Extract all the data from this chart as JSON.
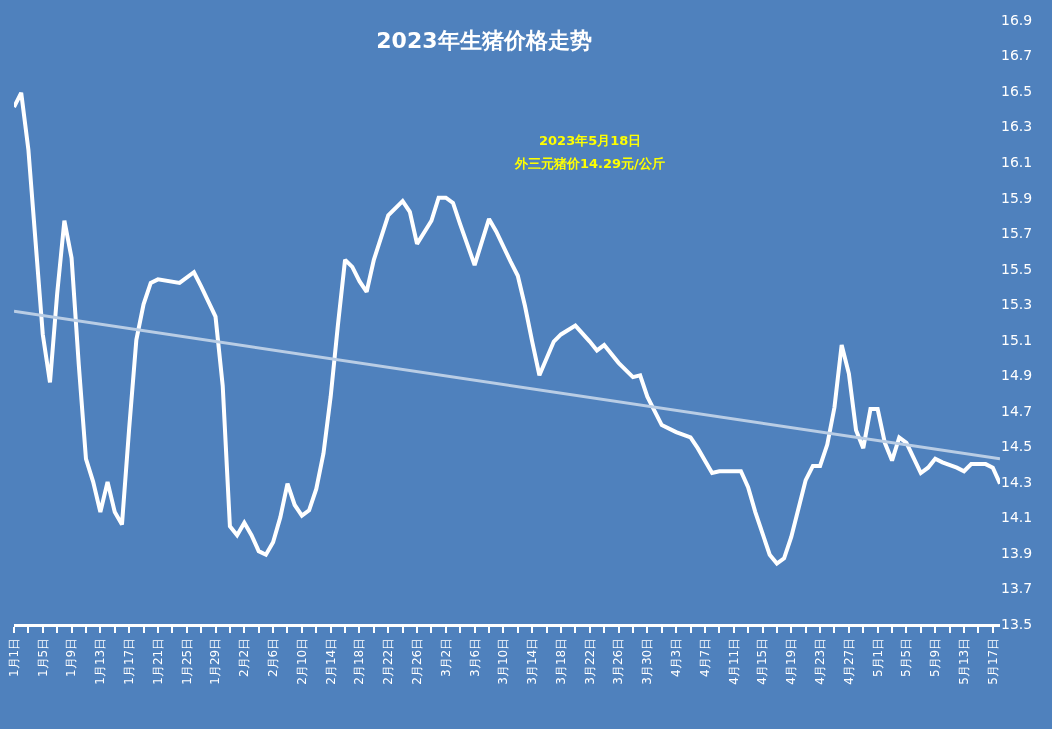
{
  "chart_data": {
    "type": "line",
    "title": "2023年生猪价格走势",
    "annotations": [
      "2023年5月18日",
      "外三元猪价14.29元/公斤"
    ],
    "series": [
      {
        "color": "#ffffff",
        "x": [
          "2023-01-01",
          "2023-01-02",
          "2023-01-03",
          "2023-01-04",
          "2023-01-05",
          "2023-01-06",
          "2023-01-07",
          "2023-01-08",
          "2023-01-09",
          "2023-01-10",
          "2023-01-11",
          "2023-01-12",
          "2023-01-13",
          "2023-01-14",
          "2023-01-15",
          "2023-01-16",
          "2023-01-17",
          "2023-01-18",
          "2023-01-19",
          "2023-01-20",
          "2023-01-21",
          "2023-01-24",
          "2023-01-26",
          "2023-01-27",
          "2023-01-29",
          "2023-01-30",
          "2023-01-31",
          "2023-02-01",
          "2023-02-02",
          "2023-02-03",
          "2023-02-04",
          "2023-02-05",
          "2023-02-06",
          "2023-02-07",
          "2023-02-08",
          "2023-02-09",
          "2023-02-10",
          "2023-02-11",
          "2023-02-12",
          "2023-02-13",
          "2023-02-14",
          "2023-02-15",
          "2023-02-16",
          "2023-02-17",
          "2023-02-18",
          "2023-02-19",
          "2023-02-20",
          "2023-02-22",
          "2023-02-24",
          "2023-02-25",
          "2023-02-26",
          "2023-02-28",
          "2023-03-01",
          "2023-03-02",
          "2023-03-03",
          "2023-03-04",
          "2023-03-06",
          "2023-03-08",
          "2023-03-09",
          "2023-03-11",
          "2023-03-12",
          "2023-03-13",
          "2023-03-14",
          "2023-03-15",
          "2023-03-17",
          "2023-03-18",
          "2023-03-20",
          "2023-03-22",
          "2023-03-23",
          "2023-03-24",
          "2023-03-26",
          "2023-03-28",
          "2023-03-29",
          "2023-03-30",
          "2023-04-01",
          "2023-04-03",
          "2023-04-05",
          "2023-04-06",
          "2023-04-08",
          "2023-04-09",
          "2023-04-12",
          "2023-04-13",
          "2023-04-14",
          "2023-04-16",
          "2023-04-17",
          "2023-04-18",
          "2023-04-19",
          "2023-04-21",
          "2023-04-22",
          "2023-04-23",
          "2023-04-24",
          "2023-04-25",
          "2023-04-26",
          "2023-04-27",
          "2023-04-28",
          "2023-04-29",
          "2023-04-30",
          "2023-05-01",
          "2023-05-02",
          "2023-05-03",
          "2023-05-04",
          "2023-05-05",
          "2023-05-07",
          "2023-05-08",
          "2023-05-09",
          "2023-05-10",
          "2023-05-12",
          "2023-05-13",
          "2023-05-14",
          "2023-05-16",
          "2023-05-17",
          "2023-05-18"
        ],
        "values": [
          16.41,
          16.49,
          16.17,
          15.65,
          15.13,
          14.86,
          15.36,
          15.77,
          15.56,
          14.96,
          14.43,
          14.3,
          14.13,
          14.3,
          14.13,
          14.06,
          14.6,
          15.1,
          15.3,
          15.42,
          15.44,
          15.42,
          15.48,
          15.4,
          15.23,
          14.84,
          14.05,
          14.0,
          14.07,
          14.0,
          13.91,
          13.89,
          13.96,
          14.1,
          14.29,
          14.17,
          14.11,
          14.14,
          14.26,
          14.46,
          14.78,
          15.18,
          15.55,
          15.51,
          15.43,
          15.37,
          15.55,
          15.8,
          15.88,
          15.82,
          15.64,
          15.77,
          15.9,
          15.9,
          15.87,
          15.75,
          15.52,
          15.78,
          15.71,
          15.54,
          15.46,
          15.29,
          15.09,
          14.9,
          15.09,
          15.13,
          15.18,
          15.09,
          15.04,
          15.07,
          14.97,
          14.89,
          14.9,
          14.78,
          14.62,
          14.58,
          14.55,
          14.49,
          14.35,
          14.36,
          14.36,
          14.27,
          14.13,
          13.89,
          13.84,
          13.87,
          13.99,
          14.31,
          14.39,
          14.39,
          14.51,
          14.72,
          15.07,
          14.91,
          14.59,
          14.49,
          14.71,
          14.71,
          14.52,
          14.42,
          14.55,
          14.52,
          14.35,
          14.38,
          14.43,
          14.41,
          14.38,
          14.36,
          14.4,
          14.4,
          14.38,
          14.29
        ]
      },
      {
        "type": "line",
        "color": "#b9cde5",
        "x": [
          "2023-01-01",
          "2023-05-18"
        ],
        "values": [
          15.26,
          14.43
        ]
      }
    ],
    "xlim": [
      "2023-01-01",
      "2023-05-18"
    ],
    "xticks": [
      {
        "value": "2023-01-01",
        "label": "1月1日"
      },
      {
        "value": "2023-01-03",
        "label": null
      },
      {
        "value": "2023-01-05",
        "label": "1月5日"
      },
      {
        "value": "2023-01-07",
        "label": null
      },
      {
        "value": "2023-01-09",
        "label": "1月9日"
      },
      {
        "value": "2023-01-11",
        "label": null
      },
      {
        "value": "2023-01-13",
        "label": "1月13日"
      },
      {
        "value": "2023-01-15",
        "label": null
      },
      {
        "value": "2023-01-17",
        "label": "1月17日"
      },
      {
        "value": "2023-01-19",
        "label": null
      },
      {
        "value": "2023-01-21",
        "label": "1月21日"
      },
      {
        "value": "2023-01-23",
        "label": null
      },
      {
        "value": "2023-01-25",
        "label": "1月25日"
      },
      {
        "value": "2023-01-27",
        "label": null
      },
      {
        "value": "2023-01-29",
        "label": "1月29日"
      },
      {
        "value": "2023-01-31",
        "label": null
      },
      {
        "value": "2023-02-02",
        "label": "2月2日"
      },
      {
        "value": "2023-02-04",
        "label": null
      },
      {
        "value": "2023-02-06",
        "label": "2月6日"
      },
      {
        "value": "2023-02-08",
        "label": null
      },
      {
        "value": "2023-02-10",
        "label": "2月10日"
      },
      {
        "value": "2023-02-12",
        "label": null
      },
      {
        "value": "2023-02-14",
        "label": "2月14日"
      },
      {
        "value": "2023-02-16",
        "label": null
      },
      {
        "value": "2023-02-18",
        "label": "2月18日"
      },
      {
        "value": "2023-02-20",
        "label": null
      },
      {
        "value": "2023-02-22",
        "label": "2月22日"
      },
      {
        "value": "2023-02-24",
        "label": null
      },
      {
        "value": "2023-02-26",
        "label": "2月26日"
      },
      {
        "value": "2023-02-28",
        "label": null
      },
      {
        "value": "2023-03-02",
        "label": "3月2日"
      },
      {
        "value": "2023-03-04",
        "label": null
      },
      {
        "value": "2023-03-06",
        "label": "3月6日"
      },
      {
        "value": "2023-03-08",
        "label": null
      },
      {
        "value": "2023-03-10",
        "label": "3月10日"
      },
      {
        "value": "2023-03-12",
        "label": null
      },
      {
        "value": "2023-03-14",
        "label": "3月14日"
      },
      {
        "value": "2023-03-16",
        "label": null
      },
      {
        "value": "2023-03-18",
        "label": "3月18日"
      },
      {
        "value": "2023-03-20",
        "label": null
      },
      {
        "value": "2023-03-22",
        "label": "3月22日"
      },
      {
        "value": "2023-03-24",
        "label": null
      },
      {
        "value": "2023-03-26",
        "label": "3月26日"
      },
      {
        "value": "2023-03-28",
        "label": null
      },
      {
        "value": "2023-03-30",
        "label": "3月30日"
      },
      {
        "value": "2023-04-01",
        "label": null
      },
      {
        "value": "2023-04-03",
        "label": "4月3日"
      },
      {
        "value": "2023-04-05",
        "label": null
      },
      {
        "value": "2023-04-07",
        "label": "4月7日"
      },
      {
        "value": "2023-04-09",
        "label": null
      },
      {
        "value": "2023-04-11",
        "label": "4月11日"
      },
      {
        "value": "2023-04-13",
        "label": null
      },
      {
        "value": "2023-04-15",
        "label": "4月15日"
      },
      {
        "value": "2023-04-17",
        "label": null
      },
      {
        "value": "2023-04-19",
        "label": "4月19日"
      },
      {
        "value": "2023-04-21",
        "label": null
      },
      {
        "value": "2023-04-23",
        "label": "4月23日"
      },
      {
        "value": "2023-04-25",
        "label": null
      },
      {
        "value": "2023-04-27",
        "label": "4月27日"
      },
      {
        "value": "2023-04-29",
        "label": null
      },
      {
        "value": "2023-05-01",
        "label": "5月1日"
      },
      {
        "value": "2023-05-03",
        "label": null
      },
      {
        "value": "2023-05-05",
        "label": "5月5日"
      },
      {
        "value": "2023-05-07",
        "label": null
      },
      {
        "value": "2023-05-09",
        "label": "5月9日"
      },
      {
        "value": "2023-05-11",
        "label": null
      },
      {
        "value": "2023-05-13",
        "label": "5月13日"
      },
      {
        "value": "2023-05-15",
        "label": null
      },
      {
        "value": "2023-05-17",
        "label": "5月17日"
      }
    ],
    "ylim": [
      13.5,
      16.9
    ],
    "yticks": [
      13.5,
      13.7,
      13.9,
      14.1,
      14.3,
      14.5,
      14.7,
      14.9,
      15.1,
      15.3,
      15.5,
      15.7,
      15.9,
      16.1,
      16.3,
      16.5,
      16.7,
      16.9
    ],
    "grid": false,
    "marker": "none"
  }
}
